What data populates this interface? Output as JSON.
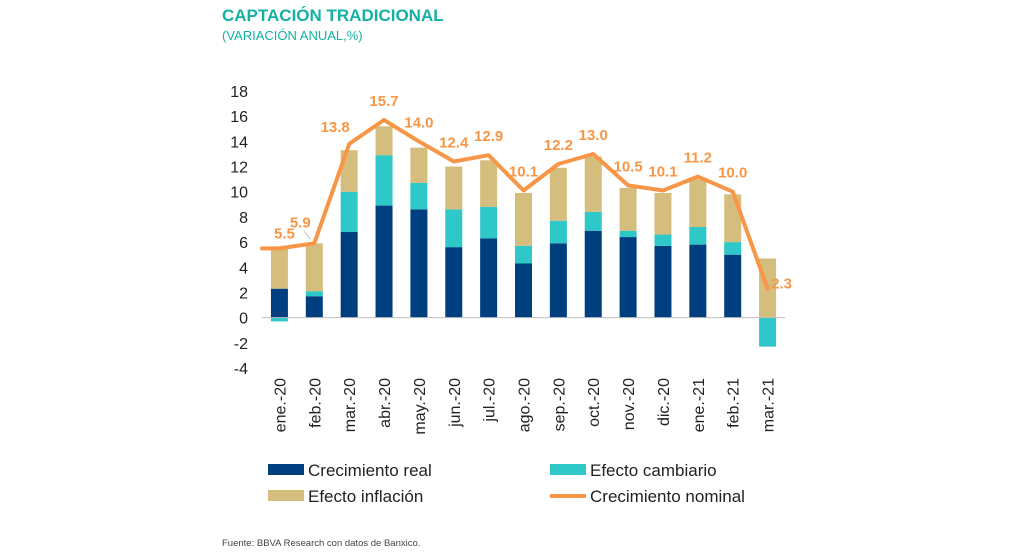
{
  "header": {
    "title": "CAPTACIÓN TRADICIONAL",
    "subtitle": "(VARIACIÓN ANUAL,%)"
  },
  "footer": {
    "source": "Fuente: BBVA Research con datos de Banxico."
  },
  "colors": {
    "title": "#14b1a3",
    "real": "#003f7f",
    "cambiario": "#2ec8c8",
    "inflacion": "#d5bd7d",
    "nominal": "#f79646",
    "axis_text": "#222222",
    "axis_line": "#bfbfbf"
  },
  "chart_data": {
    "type": "bar",
    "stacked": true,
    "categories": [
      "ene.-20",
      "feb.-20",
      "mar.-20",
      "abr.-20",
      "may.-20",
      "jun.-20",
      "jul.-20",
      "ago.-20",
      "sep.-20",
      "oct.-20",
      "nov.-20",
      "dic.-20",
      "ene.-21",
      "feb.-21",
      "mar.-21"
    ],
    "series": [
      {
        "name": "Crecimiento real",
        "kind": "bar",
        "values": [
          2.3,
          1.7,
          6.8,
          8.9,
          8.6,
          5.6,
          6.3,
          4.3,
          5.9,
          6.9,
          6.4,
          5.7,
          5.8,
          5.0,
          0.0
        ]
      },
      {
        "name": "Efecto cambiario",
        "kind": "bar",
        "values": [
          -0.3,
          0.4,
          3.2,
          4.0,
          2.1,
          3.0,
          2.5,
          1.4,
          1.8,
          1.5,
          0.5,
          0.9,
          1.4,
          1.0,
          -2.3
        ]
      },
      {
        "name": "Efecto inflación",
        "kind": "bar",
        "values": [
          3.2,
          3.8,
          3.3,
          2.3,
          2.8,
          3.4,
          3.7,
          4.2,
          4.2,
          4.4,
          3.4,
          3.3,
          3.8,
          3.8,
          4.7
        ]
      },
      {
        "name": "Crecimiento nominal",
        "kind": "line",
        "values": [
          5.5,
          5.9,
          13.8,
          15.7,
          14.0,
          12.4,
          12.9,
          10.1,
          12.2,
          13.0,
          10.5,
          10.1,
          11.2,
          10.0,
          2.3
        ]
      }
    ],
    "data_labels": [
      "5.5",
      "5.9",
      "13.8",
      "15.7",
      "14.0",
      "12.4",
      "12.9",
      "10.1",
      "12.2",
      "13.0",
      "10.5",
      "10.1",
      "11.2",
      "10.0",
      "2.3"
    ],
    "yticks": [
      "18",
      "16",
      "14",
      "12",
      "10",
      "8",
      "6",
      "4",
      "2",
      "0",
      "-2",
      "-4"
    ],
    "ylim": [
      -4,
      18
    ],
    "ytick_step": 2,
    "grid": false,
    "legend_position": "bottom",
    "xlabel": "",
    "ylabel": ""
  }
}
